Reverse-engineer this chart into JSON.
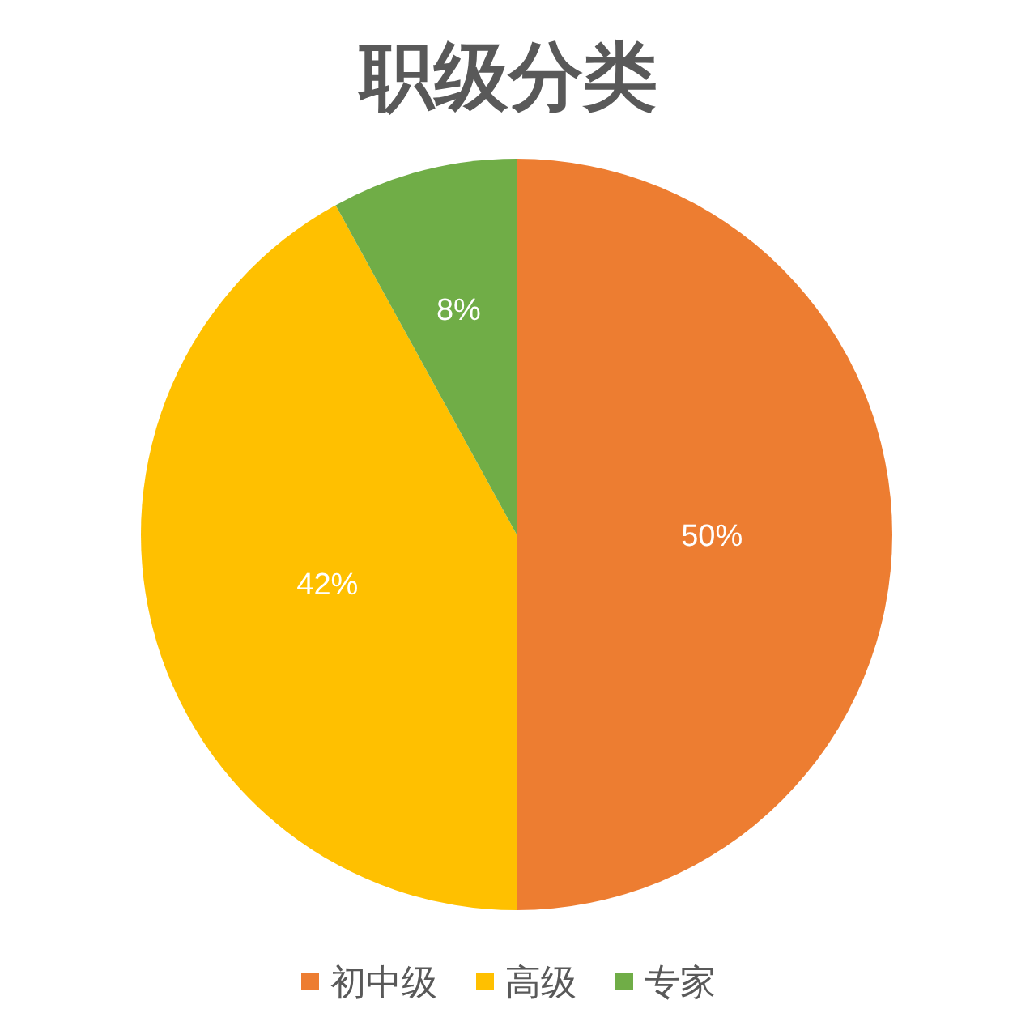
{
  "chart_data": {
    "type": "pie",
    "title": "职级分类",
    "categories": [
      "初中级",
      "高级",
      "专家"
    ],
    "values": [
      50,
      42,
      8
    ],
    "colors": [
      "#ed7d31",
      "#ffc000",
      "#70ad47"
    ],
    "value_labels": [
      "50%",
      "42%",
      "8%"
    ],
    "legend": "bottom"
  }
}
